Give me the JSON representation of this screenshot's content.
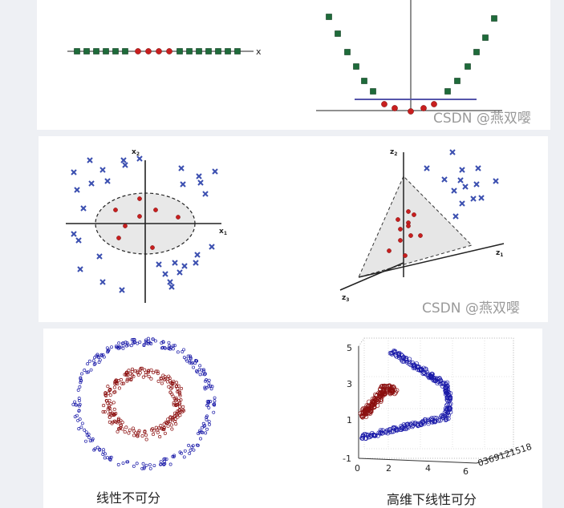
{
  "panels": {
    "top": {
      "left_axis_label": "x",
      "watermark": "CSDN @燕双嘤"
    },
    "middle": {
      "left_x_label": "x",
      "left_x_sub": "1",
      "left_y_label": "x",
      "left_y_sub": "2",
      "right_x_label": "z",
      "right_x_sub": "1",
      "right_y_label": "z",
      "right_y_sub": "2",
      "right_z_label": "z",
      "right_z_sub": "3",
      "watermark": "CSDN @燕双嘤"
    },
    "bottom": {
      "left_caption": "线性不可分",
      "right_caption": "高维下线性可分",
      "y_ticks": [
        "5",
        "3",
        "1",
        "-1"
      ],
      "x_ticks": [
        "0",
        "2",
        "4",
        "6"
      ],
      "z_ticks": "0369121518"
    }
  },
  "colors": {
    "green_square": "#1e6b3a",
    "red_dot": "#c81e1e",
    "blue_cross": "#3b4fb0",
    "blue_ring": "#1a1aa8",
    "dark_red_ring": "#8b0f0f",
    "line_blue": "#5555aa"
  }
}
